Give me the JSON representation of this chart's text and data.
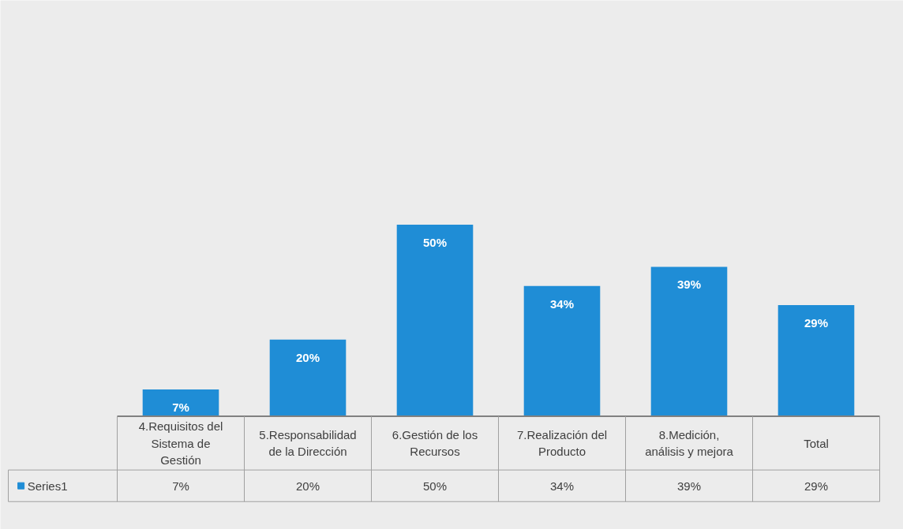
{
  "chart_data": {
    "type": "bar",
    "categories": [
      "4.Requisitos del Sistema de Gestión",
      "5.Responsabilidad de la Dirección",
      "6.Gestión de los Recursos",
      "7.Realización del Producto",
      "8.Medición, análisis y mejora",
      "Total"
    ],
    "series": [
      {
        "name": "Series1",
        "color": "#1f8dd6",
        "values": [
          7,
          20,
          50,
          34,
          39,
          29
        ],
        "value_labels": [
          "7%",
          "20%",
          "50%",
          "34%",
          "39%",
          "29%"
        ]
      }
    ],
    "legend": "bottom left"
  }
}
